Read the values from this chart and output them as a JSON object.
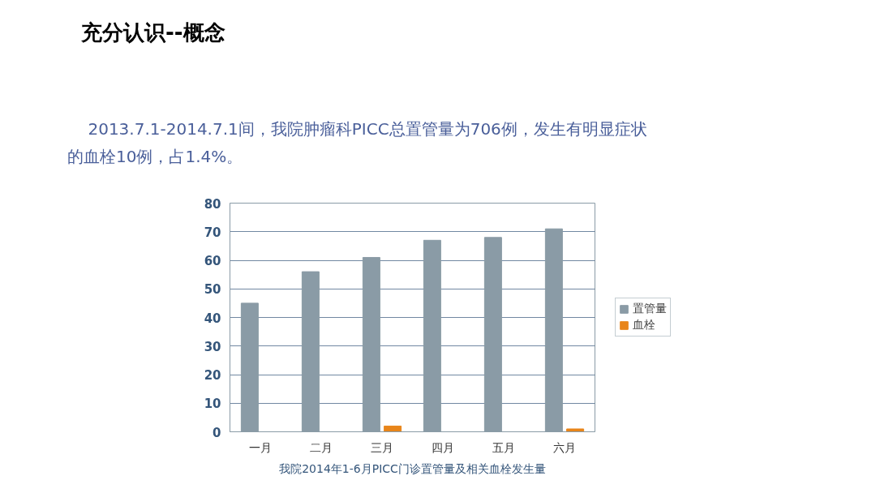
{
  "chart_data": {
    "type": "bar",
    "title": "充分认识--概念",
    "subtitle": "2013.7.1-2014.7.1间，我院肿瘤科PICC总置管量为706例，发生有明显症状的血栓10例，占1.4%。",
    "categories": [
      "一月",
      "二月",
      "三月",
      "四月",
      "五月",
      "六月"
    ],
    "series": [
      {
        "name": "置管量",
        "color": "#8a9ba6",
        "values": [
          45,
          56,
          61,
          67,
          68,
          71
        ]
      },
      {
        "name": "血栓",
        "color": "#e8851a",
        "values": [
          0,
          0,
          2,
          0,
          0,
          1
        ]
      }
    ],
    "ylim": [
      0,
      80
    ],
    "yticks": [
      0,
      10,
      20,
      30,
      40,
      50,
      60,
      70,
      80
    ],
    "grid": "y",
    "legend": "right",
    "annotations": [
      "我院2014年1-6月PICC门诊置管量及相关血栓发生量"
    ]
  }
}
